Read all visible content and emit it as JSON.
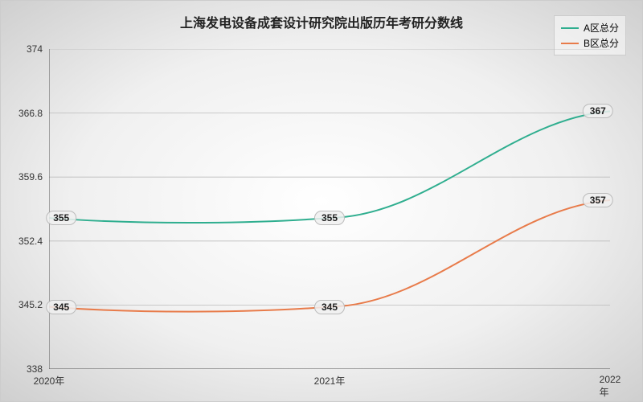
{
  "chart": {
    "type": "line",
    "title": "上海发电设备成套设计研究院出版历年考研分数线",
    "title_fontsize": 16,
    "background_gradient": {
      "inner": "#ffffff",
      "outer": "#cfcfcf"
    },
    "x": {
      "categories": [
        "2020年",
        "2021年",
        "2022年"
      ],
      "positions": [
        0,
        0.5,
        1
      ]
    },
    "y": {
      "min": 338,
      "max": 374,
      "ticks": [
        338,
        345.2,
        352.4,
        359.6,
        366.8,
        374
      ],
      "label_fontsize": 12
    },
    "grid_color": "#bbbbbb",
    "axis_color": "#555555",
    "series": [
      {
        "name": "A区总分",
        "color": "#2fae8f",
        "line_width": 2,
        "smooth": true,
        "points": [
          {
            "x": 0,
            "y": 355,
            "label": "355",
            "show_label": true
          },
          {
            "x": 0.5,
            "y": 355,
            "label": "355",
            "show_label": true
          },
          {
            "x": 1,
            "y": 367,
            "label": "367",
            "show_label": true
          }
        ]
      },
      {
        "name": "B区总分",
        "color": "#e87b4a",
        "line_width": 2,
        "smooth": true,
        "points": [
          {
            "x": 0,
            "y": 345,
            "label": "345",
            "show_label": true
          },
          {
            "x": 0.5,
            "y": 345,
            "label": "345",
            "show_label": true
          },
          {
            "x": 1,
            "y": 357,
            "label": "357",
            "show_label": true
          }
        ]
      }
    ],
    "legend": {
      "position": "top-right",
      "border_color": "#cccccc",
      "fontsize": 12
    },
    "data_label_style": {
      "fontsize": 12,
      "background": "#f0f0f0",
      "border_color": "#bbbbbb",
      "border_radius": 9
    }
  }
}
